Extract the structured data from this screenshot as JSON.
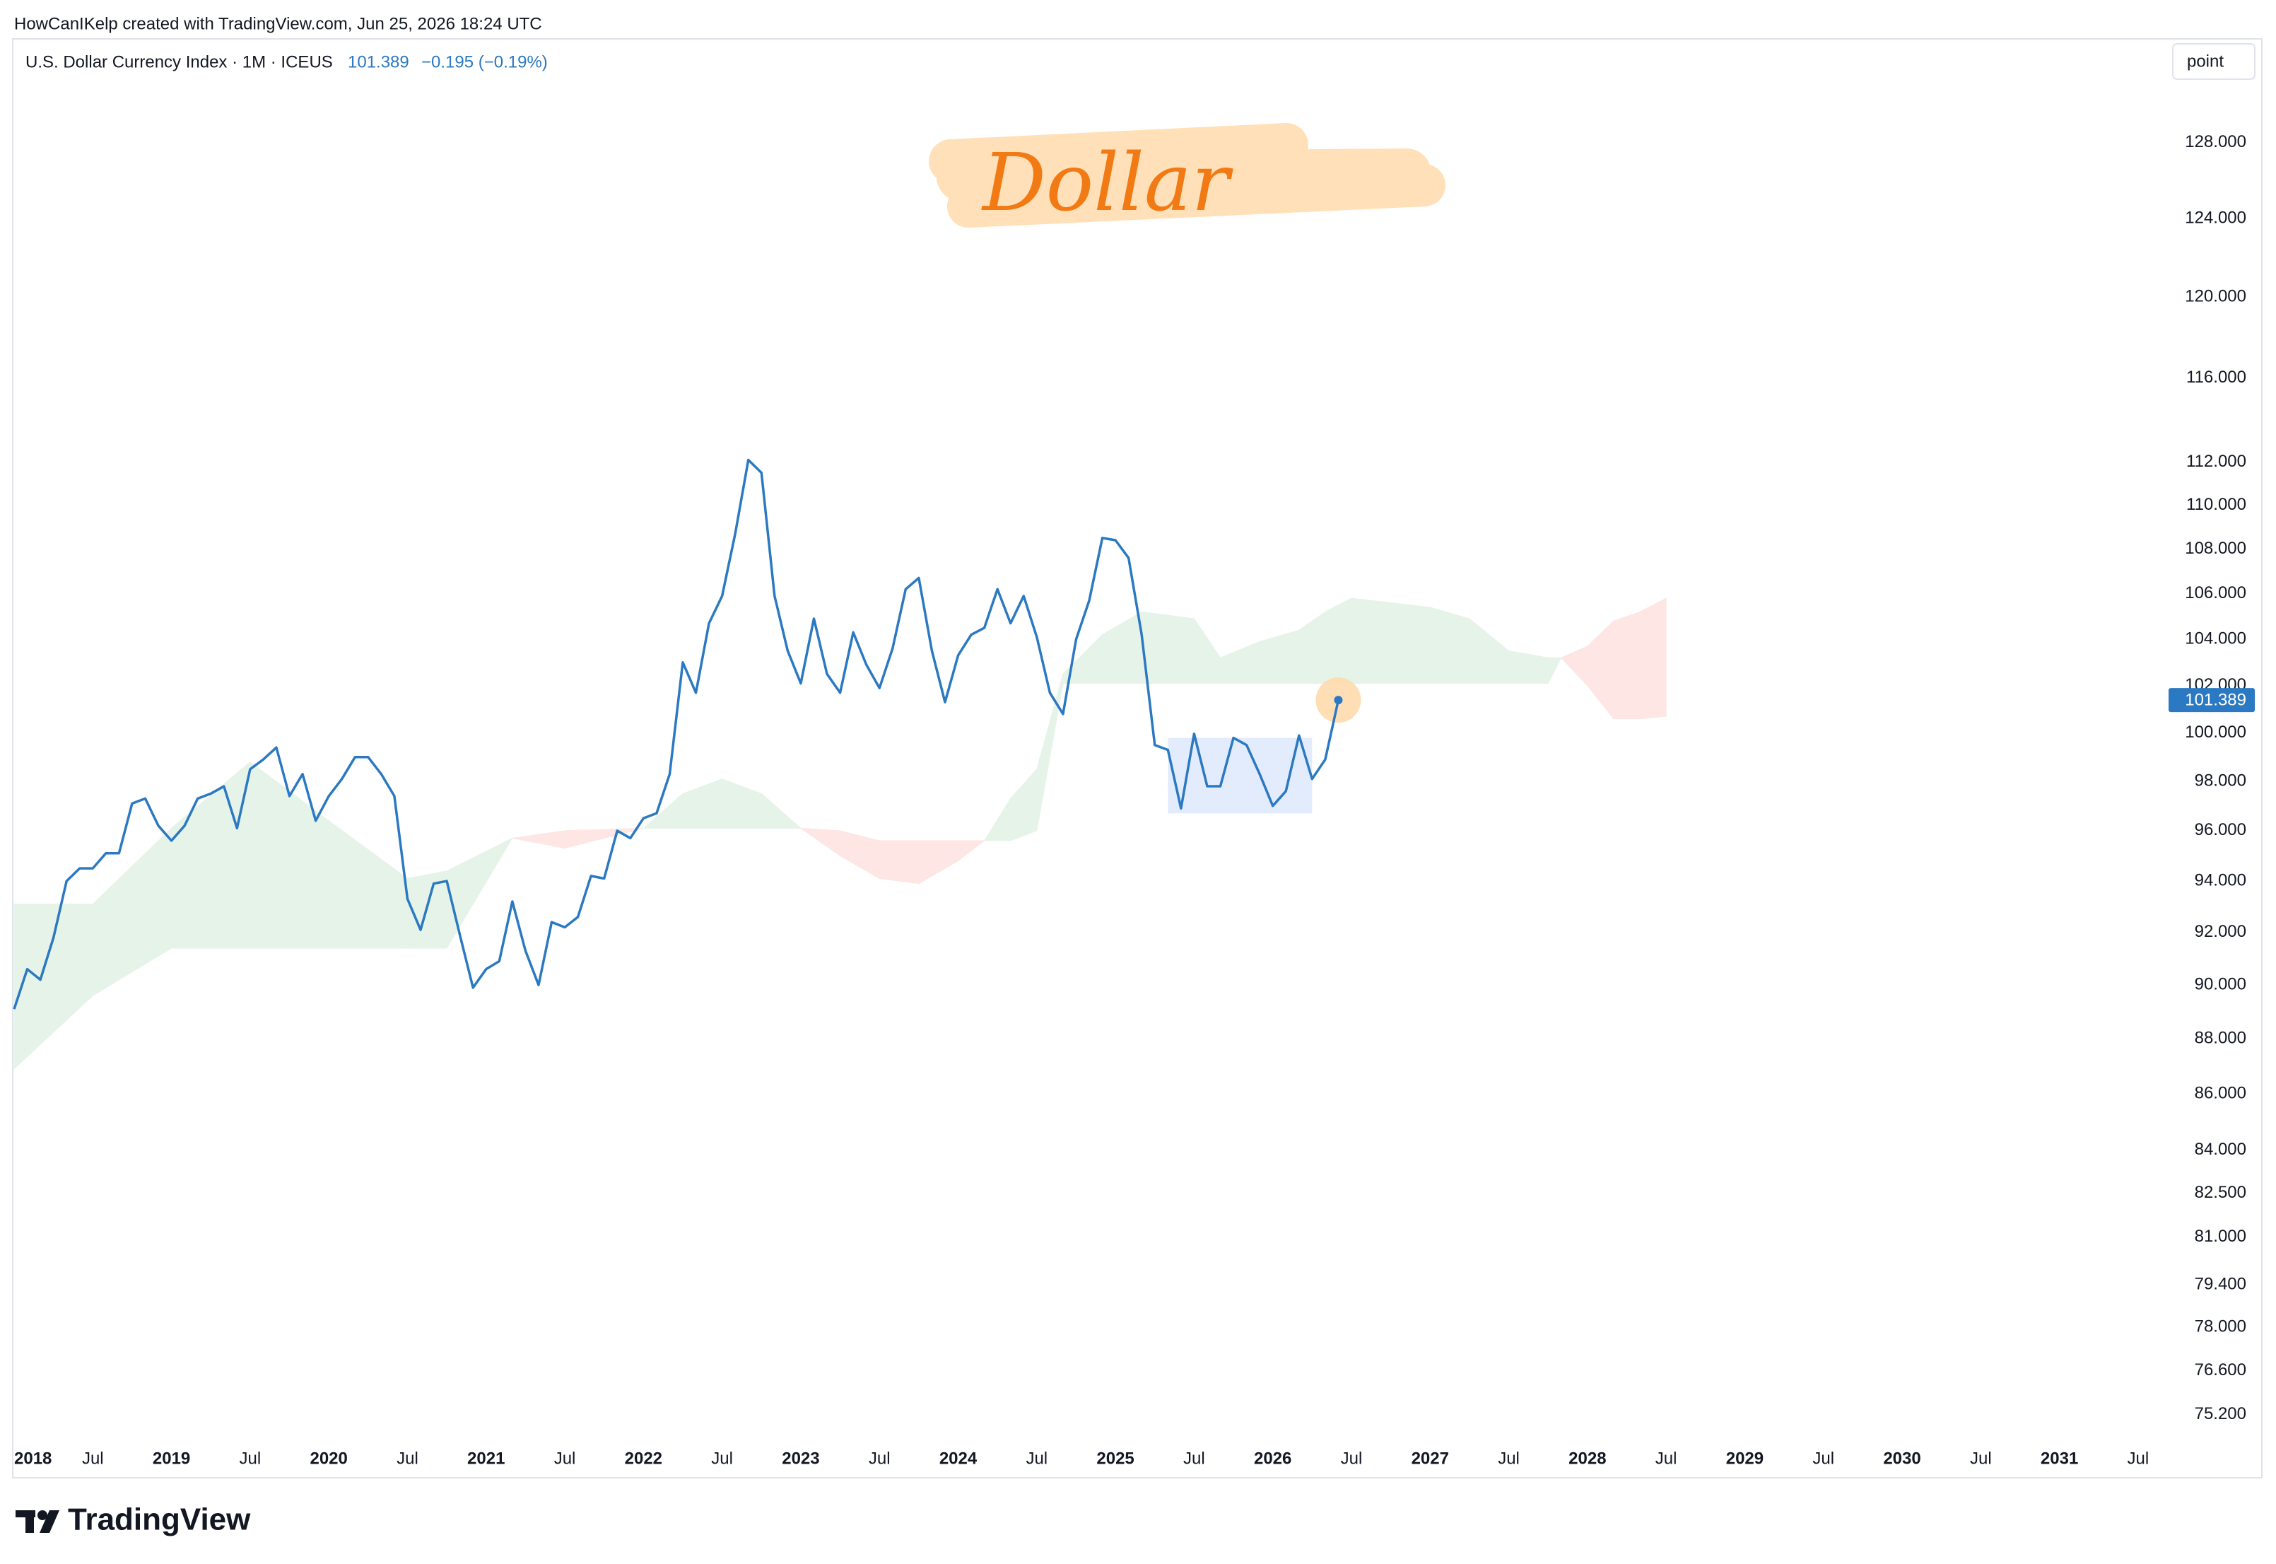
{
  "header": {
    "attribution": "HowCanIKelp created with TradingView.com, Jun 25, 2026 18:24 UTC"
  },
  "chart_data": {
    "type": "line",
    "symbol": "U.S. Dollar Currency Index · 1M · ICEUS",
    "change": "−0.195 (−0.19%)",
    "annotation": "Dollar",
    "scale": "log",
    "grid": false,
    "x": [
      "2018-01",
      "2018-02",
      "2018-03",
      "2018-04",
      "2018-05",
      "2018-06",
      "2018-07",
      "2018-08",
      "2018-09",
      "2018-10",
      "2018-11",
      "2018-12",
      "2019-01",
      "2019-02",
      "2019-03",
      "2019-04",
      "2019-05",
      "2019-06",
      "2019-07",
      "2019-08",
      "2019-09",
      "2019-10",
      "2019-11",
      "2019-12",
      "2020-01",
      "2020-02",
      "2020-03",
      "2020-04",
      "2020-05",
      "2020-06",
      "2020-07",
      "2020-08",
      "2020-09",
      "2020-10",
      "2020-11",
      "2020-12",
      "2021-01",
      "2021-02",
      "2021-03",
      "2021-04",
      "2021-05",
      "2021-06",
      "2021-07",
      "2021-08",
      "2021-09",
      "2021-10",
      "2021-11",
      "2021-12",
      "2022-01",
      "2022-02",
      "2022-03",
      "2022-04",
      "2022-05",
      "2022-06",
      "2022-07",
      "2022-08",
      "2022-09",
      "2022-10",
      "2022-11",
      "2022-12",
      "2023-01",
      "2023-02",
      "2023-03",
      "2023-04",
      "2023-05",
      "2023-06",
      "2023-07",
      "2023-08",
      "2023-09",
      "2023-10",
      "2023-11",
      "2023-12",
      "2024-01",
      "2024-02",
      "2024-03",
      "2024-04",
      "2024-05",
      "2024-06",
      "2024-07",
      "2024-08",
      "2024-09",
      "2024-10",
      "2024-11",
      "2024-12",
      "2025-01",
      "2025-02",
      "2025-03",
      "2025-04",
      "2025-05",
      "2025-06",
      "2025-07",
      "2025-08",
      "2025-09",
      "2025-10",
      "2025-11",
      "2025-12",
      "2026-01",
      "2026-02",
      "2026-03",
      "2026-04",
      "2026-05",
      "2026-06"
    ],
    "series": [
      {
        "color": "#2b79c2",
        "values": [
          89.1,
          90.6,
          90.2,
          91.8,
          94.0,
          94.5,
          94.5,
          95.1,
          95.1,
          97.1,
          97.3,
          96.2,
          95.6,
          96.2,
          97.3,
          97.5,
          97.8,
          96.1,
          98.5,
          98.9,
          99.4,
          97.4,
          98.3,
          96.4,
          97.4,
          98.1,
          99.0,
          99.0,
          98.3,
          97.4,
          93.3,
          92.1,
          93.9,
          94.0,
          91.9,
          89.9,
          90.6,
          90.9,
          93.2,
          91.3,
          90.0,
          92.4,
          92.2,
          92.6,
          94.2,
          94.1,
          96.0,
          95.7,
          96.5,
          96.7,
          98.3,
          103.0,
          101.7,
          104.7,
          105.9,
          108.7,
          112.1,
          111.5,
          105.9,
          103.5,
          102.1,
          104.9,
          102.5,
          101.7,
          104.3,
          102.9,
          101.9,
          103.6,
          106.2,
          106.7,
          103.5,
          101.3,
          103.3,
          104.2,
          104.5,
          106.2,
          104.7,
          105.9,
          104.1,
          101.7,
          100.8,
          104.0,
          105.7,
          108.5,
          108.4,
          107.6,
          104.2,
          99.5,
          99.3,
          96.9,
          99.97,
          97.8,
          97.8,
          99.8,
          99.5,
          98.3,
          97.0,
          97.6,
          99.9,
          98.1,
          98.9,
          101.389
        ]
      }
    ],
    "xlim": [
      "2018-01",
      "2031-09"
    ],
    "xticks": [
      {
        "value": "2018-01",
        "label": "2018"
      },
      {
        "value": "2018-07",
        "label": "Jul"
      },
      {
        "value": "2019-01",
        "label": "2019"
      },
      {
        "value": "2019-07",
        "label": "Jul"
      },
      {
        "value": "2020-01",
        "label": "2020"
      },
      {
        "value": "2020-07",
        "label": "Jul"
      },
      {
        "value": "2021-01",
        "label": "2021"
      },
      {
        "value": "2021-07",
        "label": "Jul"
      },
      {
        "value": "2022-01",
        "label": "2022"
      },
      {
        "value": "2022-07",
        "label": "Jul"
      },
      {
        "value": "2023-01",
        "label": "2023"
      },
      {
        "value": "2023-07",
        "label": "Jul"
      },
      {
        "value": "2024-01",
        "label": "2024"
      },
      {
        "value": "2024-07",
        "label": "Jul"
      },
      {
        "value": "2025-01",
        "label": "2025"
      },
      {
        "value": "2025-07",
        "label": "Jul"
      },
      {
        "value": "2026-01",
        "label": "2026"
      },
      {
        "value": "2026-07",
        "label": "Jul"
      },
      {
        "value": "2027-01",
        "label": "2027"
      },
      {
        "value": "2027-07",
        "label": "Jul"
      },
      {
        "value": "2028-01",
        "label": "2028"
      },
      {
        "value": "2028-07",
        "label": "Jul"
      },
      {
        "value": "2029-01",
        "label": "2029"
      },
      {
        "value": "2029-07",
        "label": "Jul"
      },
      {
        "value": "2030-01",
        "label": "2030"
      },
      {
        "value": "2030-07",
        "label": "Jul"
      },
      {
        "value": "2031-01",
        "label": "2031"
      },
      {
        "value": "2031-07",
        "label": "Jul"
      }
    ],
    "ylim": [
      74.4,
      133.6
    ],
    "yticks": [
      {
        "value": 128,
        "label": "128.000"
      },
      {
        "value": 124,
        "label": "124.000"
      },
      {
        "value": 120,
        "label": "120.000"
      },
      {
        "value": 116,
        "label": "116.000"
      },
      {
        "value": 112,
        "label": "112.000"
      },
      {
        "value": 110,
        "label": "110.000"
      },
      {
        "value": 108,
        "label": "108.000"
      },
      {
        "value": 106,
        "label": "106.000"
      },
      {
        "value": 104,
        "label": "104.000"
      },
      {
        "value": 102,
        "label": "102.000"
      },
      {
        "value": 100,
        "label": "100.000"
      },
      {
        "value": 98,
        "label": "98.000"
      },
      {
        "value": 96,
        "label": "96.000"
      },
      {
        "value": 94,
        "label": "94.000"
      },
      {
        "value": 92,
        "label": "92.000"
      },
      {
        "value": 90,
        "label": "90.000"
      },
      {
        "value": 88,
        "label": "88.000"
      },
      {
        "value": 86,
        "label": "86.000"
      },
      {
        "value": 84,
        "label": "84.000"
      },
      {
        "value": 82.5,
        "label": "82.500"
      },
      {
        "value": 81,
        "label": "81.000"
      },
      {
        "value": 79.4,
        "label": "79.400"
      },
      {
        "value": 78,
        "label": "78.000"
      },
      {
        "value": 76.6,
        "label": "76.600"
      },
      {
        "value": 75.2,
        "label": "75.200"
      }
    ],
    "cloud": {
      "up_color": "#e6f3e8",
      "down_color": "#fde6e4",
      "x": [
        "2018-01",
        "2018-07",
        "2019-01",
        "2019-07",
        "2020-01",
        "2020-07",
        "2020-10",
        "2021-03",
        "2021-07",
        "2022-01",
        "2022-04",
        "2022-07",
        "2022-10",
        "2023-01",
        "2023-04",
        "2023-07",
        "2023-10",
        "2024-01",
        "2024-03",
        "2024-05",
        "2024-07",
        "2024-09",
        "2024-12",
        "2025-03",
        "2025-07",
        "2025-09",
        "2025-12",
        "2026-03",
        "2026-05",
        "2026-07",
        "2026-10",
        "2027-01",
        "2027-04",
        "2027-07",
        "2027-10",
        "2027-11",
        "2028-01",
        "2028-03",
        "2028-05",
        "2028-07"
      ],
      "span_a": [
        93.1,
        93.1,
        96.1,
        98.8,
        96.4,
        94.1,
        94.4,
        95.7,
        95.3,
        96.1,
        97.5,
        98.1,
        97.5,
        96.1,
        95.0,
        94.1,
        93.9,
        94.8,
        95.6,
        97.3,
        98.5,
        102.5,
        104.2,
        105.2,
        104.9,
        103.2,
        103.9,
        104.4,
        105.2,
        105.8,
        105.6,
        105.4,
        104.9,
        103.5,
        103.2,
        103.2,
        102.0,
        100.6,
        100.6,
        100.7
      ],
      "span_b": [
        86.9,
        89.6,
        91.4,
        91.4,
        91.4,
        91.4,
        91.4,
        95.7,
        96.0,
        96.1,
        96.1,
        96.1,
        96.1,
        96.1,
        96.0,
        95.6,
        95.6,
        95.6,
        95.6,
        95.6,
        96.0,
        102.1,
        102.1,
        102.1,
        102.1,
        102.1,
        102.1,
        102.1,
        102.1,
        102.1,
        102.1,
        102.1,
        102.1,
        102.1,
        102.1,
        103.2,
        103.7,
        104.8,
        105.2,
        105.8
      ]
    },
    "box": {
      "color": "#e3ecfd",
      "x": [
        "2025-05",
        "2026-04"
      ],
      "y": [
        96.7,
        99.8
      ]
    }
  },
  "toolbar": {
    "scale_button": "point"
  },
  "footer": {
    "logo": "TradingView"
  }
}
